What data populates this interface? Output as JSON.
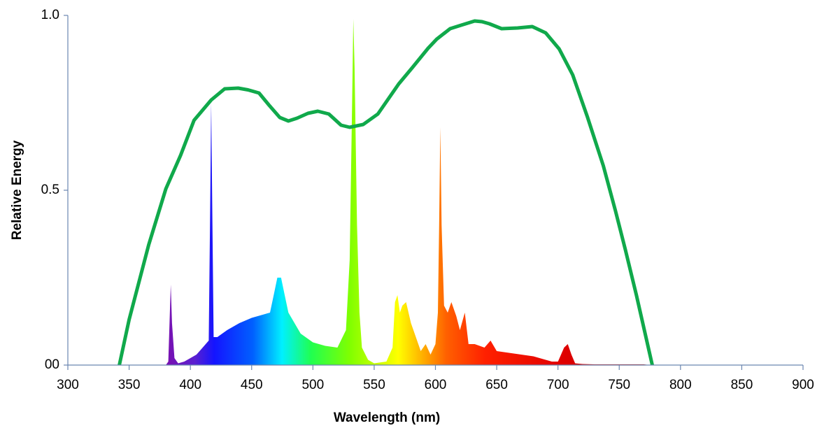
{
  "chart_data": {
    "type": "line",
    "x_label": "Wavelength (nm)",
    "y_label": "Relative Energy",
    "xlim": [
      300,
      900
    ],
    "xticks": [
      300,
      350,
      400,
      450,
      500,
      550,
      600,
      650,
      700,
      750,
      800,
      850,
      900
    ],
    "ylim": [
      0,
      1
    ],
    "yticks": [
      {
        "value": 0,
        "label": "00"
      },
      0.5,
      {
        "value": 1,
        "label": "1.0"
      }
    ],
    "grid": false,
    "series": [
      {
        "type": "area",
        "x": [
          380,
          382,
          384,
          385,
          387,
          390,
          395,
          400,
          405,
          410,
          415,
          416,
          417,
          418,
          419,
          422,
          430,
          440,
          450,
          460,
          465,
          468,
          471,
          474,
          477,
          480,
          490,
          500,
          510,
          520,
          527,
          530,
          532,
          533,
          534,
          536,
          538,
          540,
          545,
          550,
          560,
          565,
          567,
          569,
          571,
          573,
          576,
          580,
          584,
          588,
          592,
          596,
          600,
          602,
          603,
          604,
          605,
          607,
          610,
          613,
          617,
          620,
          624,
          627,
          632,
          640,
          645,
          650,
          660,
          670,
          680,
          690,
          695,
          700,
          705,
          708,
          711,
          714,
          720,
          730,
          750,
          770,
          775
        ],
        "values": [
          0,
          0.01,
          0.23,
          0.12,
          0.02,
          0.005,
          0.01,
          0.02,
          0.03,
          0.05,
          0.07,
          0.4,
          0.75,
          0.4,
          0.08,
          0.08,
          0.1,
          0.12,
          0.135,
          0.145,
          0.15,
          0.2,
          0.25,
          0.25,
          0.2,
          0.15,
          0.09,
          0.065,
          0.055,
          0.05,
          0.1,
          0.3,
          0.75,
          0.99,
          0.85,
          0.4,
          0.15,
          0.05,
          0.015,
          0.005,
          0.01,
          0.05,
          0.18,
          0.2,
          0.15,
          0.17,
          0.18,
          0.12,
          0.08,
          0.04,
          0.06,
          0.03,
          0.06,
          0.15,
          0.4,
          0.68,
          0.4,
          0.17,
          0.15,
          0.18,
          0.14,
          0.1,
          0.15,
          0.06,
          0.06,
          0.05,
          0.07,
          0.04,
          0.035,
          0.03,
          0.025,
          0.015,
          0.01,
          0.01,
          0.05,
          0.06,
          0.03,
          0.005,
          0.003,
          0.002,
          0.002,
          0.002,
          0
        ]
      },
      {
        "type": "line",
        "color": "#10a94b",
        "x": [
          342,
          350,
          366,
          380,
          392,
          403,
          417,
          428,
          439,
          447,
          456,
          464,
          473,
          480,
          487,
          496,
          504,
          513,
          523,
          530,
          541,
          553,
          570,
          581,
          594,
          601,
          612,
          621,
          632,
          638,
          644,
          654,
          667,
          679,
          690,
          701,
          712,
          724,
          737,
          747,
          755,
          764,
          777
        ],
        "values": [
          0,
          0.13,
          0.344,
          0.504,
          0.6,
          0.7,
          0.758,
          0.79,
          0.792,
          0.787,
          0.778,
          0.744,
          0.708,
          0.698,
          0.706,
          0.72,
          0.726,
          0.718,
          0.686,
          0.68,
          0.688,
          0.718,
          0.804,
          0.85,
          0.906,
          0.932,
          0.962,
          0.972,
          0.984,
          0.982,
          0.976,
          0.962,
          0.964,
          0.968,
          0.95,
          0.904,
          0.83,
          0.71,
          0.57,
          0.44,
          0.33,
          0.2,
          0
        ]
      }
    ]
  }
}
